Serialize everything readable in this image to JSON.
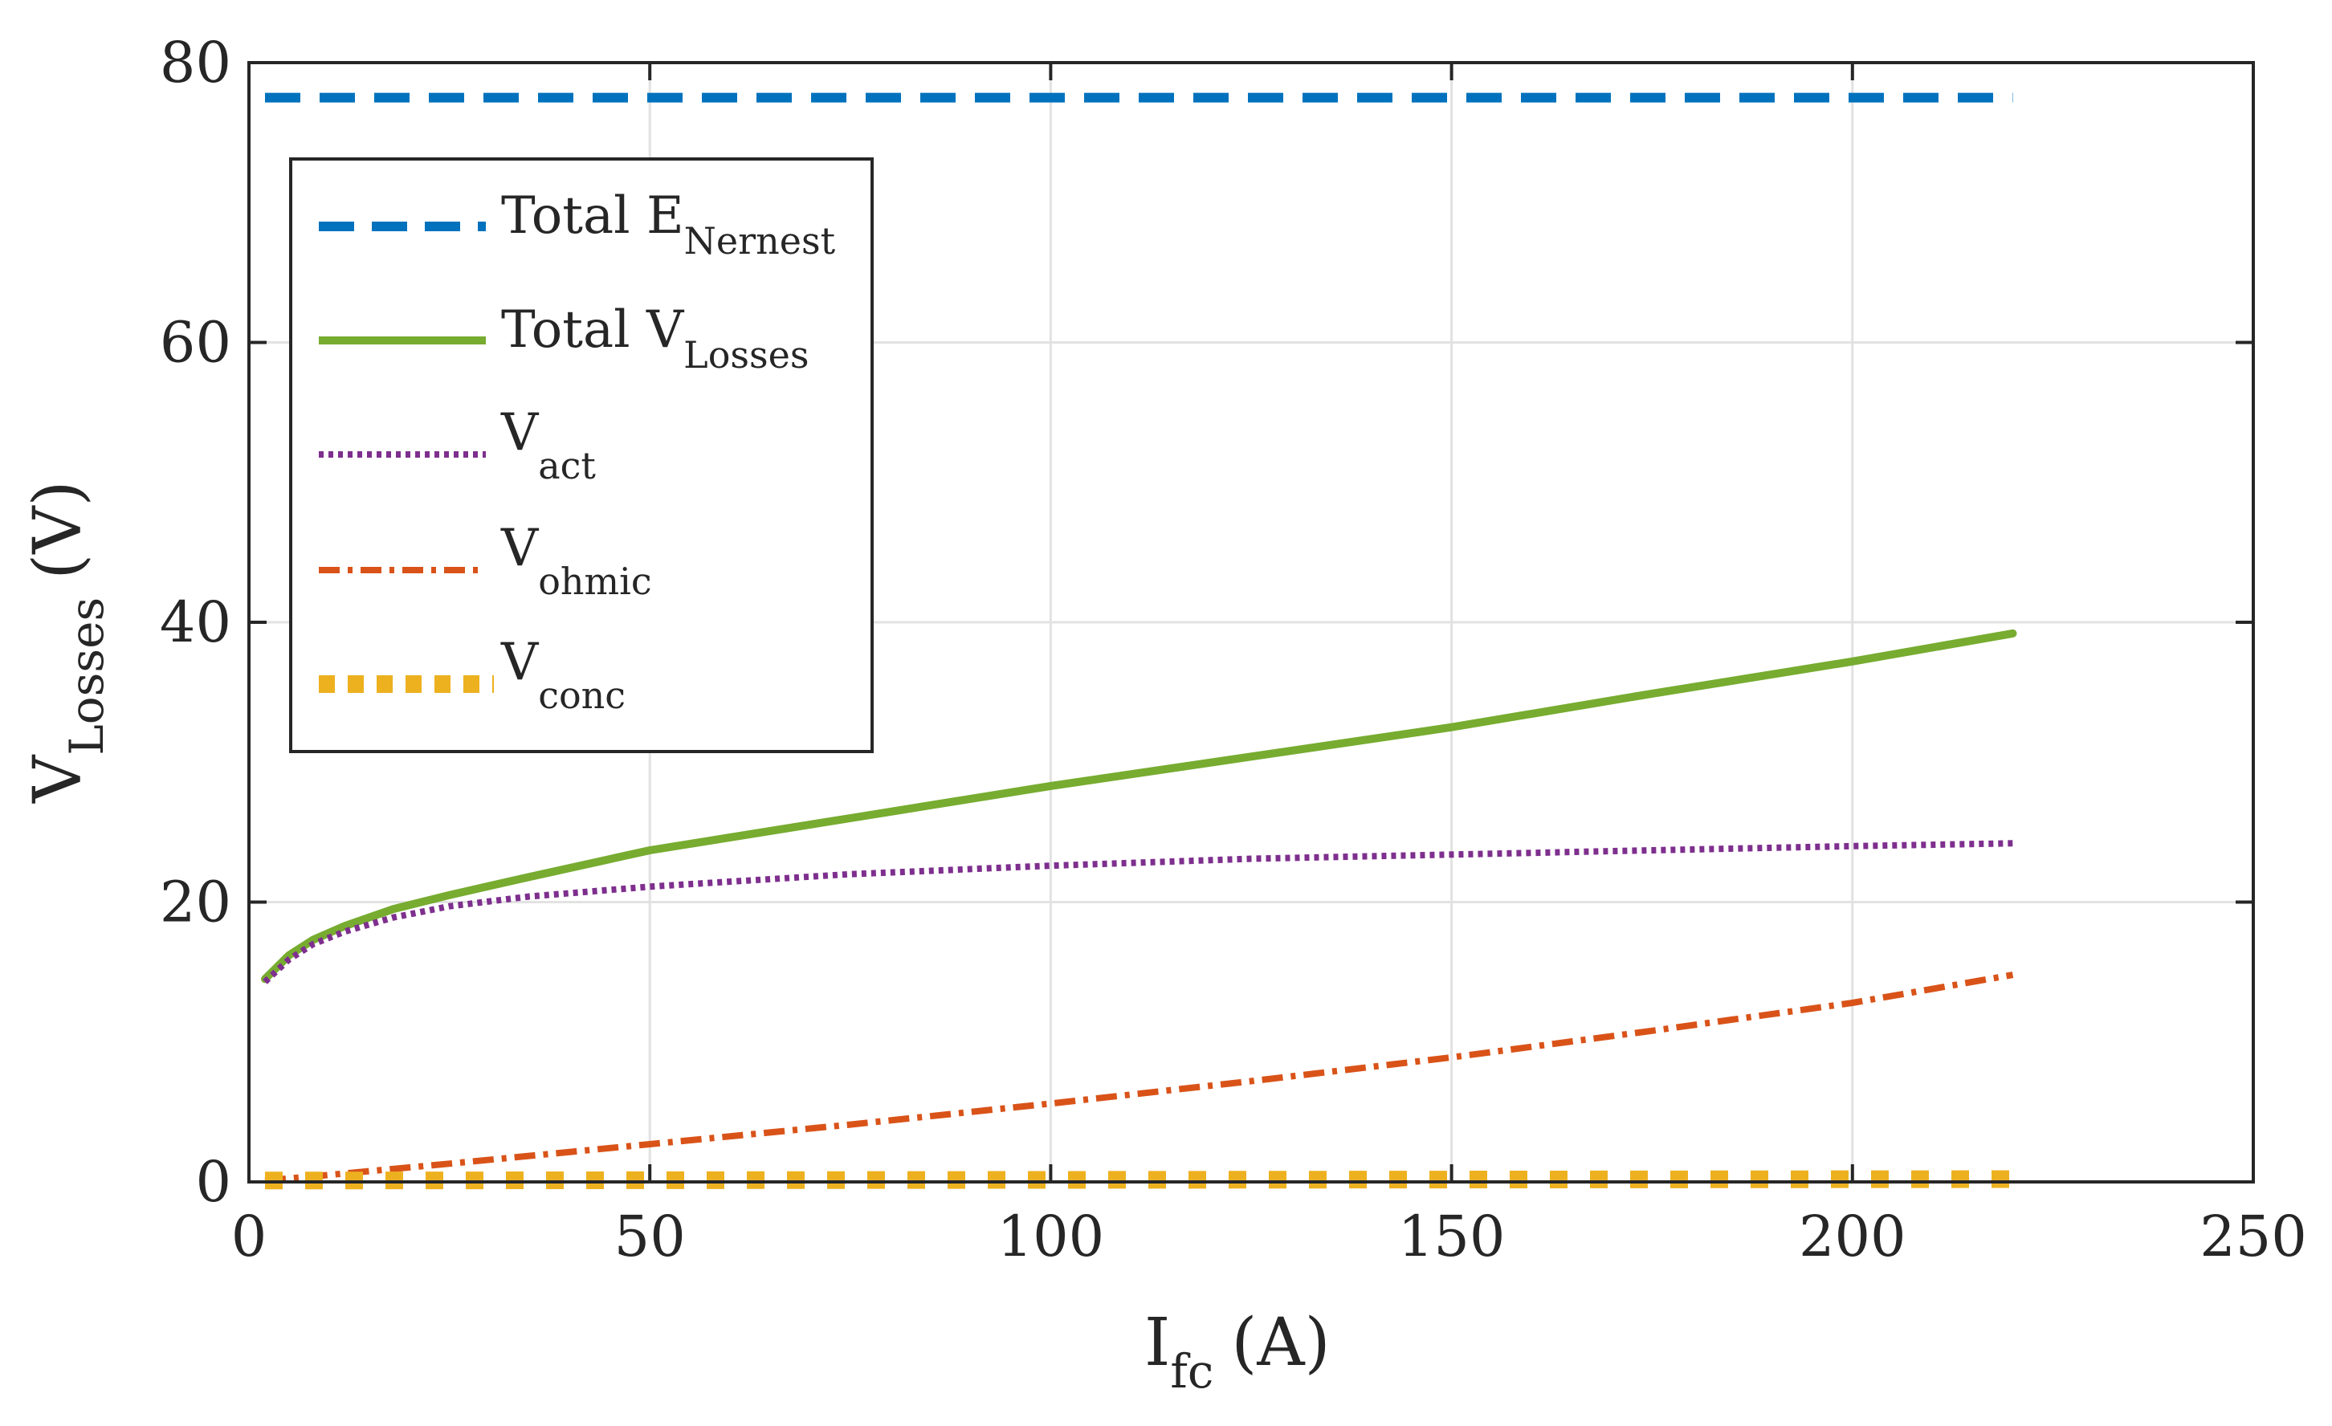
{
  "chart_data": {
    "type": "line",
    "title": "",
    "xlabel": {
      "main": "I",
      "sub": "fc",
      "unit": "(A)"
    },
    "ylabel": {
      "main": "V",
      "sub": "Losses",
      "unit": "(V)"
    },
    "xlim": [
      0,
      250
    ],
    "ylim": [
      0,
      80
    ],
    "xticks": [
      0,
      50,
      100,
      150,
      200,
      250
    ],
    "yticks": [
      0,
      20,
      40,
      60,
      80
    ],
    "grid": true,
    "legend_position": "top-left",
    "series": [
      {
        "name": "Total E_Nernest",
        "label_main": "Total E",
        "label_sub": "Nernest",
        "color": "#0072BD",
        "style": "dashed",
        "x": [
          2,
          220
        ],
        "y": [
          77.5,
          77.5
        ]
      },
      {
        "name": "Total V_Losses",
        "label_main": "Total V",
        "label_sub": "Losses",
        "color": "#77AC30",
        "style": "solid",
        "x": [
          2,
          5,
          8,
          12,
          18,
          25,
          35,
          50,
          75,
          100,
          125,
          150,
          175,
          200,
          220
        ],
        "y": [
          14.5,
          16.2,
          17.3,
          18.3,
          19.5,
          20.5,
          21.8,
          23.7,
          26.0,
          28.3,
          30.4,
          32.5,
          34.9,
          37.2,
          39.2
        ]
      },
      {
        "name": "V_act",
        "label_main": "V",
        "label_sub": "act",
        "color": "#7E2F8E",
        "style": "dotted",
        "x": [
          2,
          5,
          8,
          12,
          18,
          25,
          35,
          50,
          75,
          100,
          125,
          150,
          175,
          200,
          220
        ],
        "y": [
          14.3,
          15.9,
          17.0,
          17.9,
          18.9,
          19.7,
          20.4,
          21.1,
          22.0,
          22.6,
          23.1,
          23.4,
          23.7,
          24.0,
          24.2
        ]
      },
      {
        "name": "V_ohmic",
        "label_main": "V",
        "label_sub": "ohmic",
        "color": "#D95319",
        "style": "dashdot",
        "x": [
          2,
          10,
          25,
          50,
          75,
          100,
          125,
          150,
          175,
          200,
          220
        ],
        "y": [
          0.1,
          0.5,
          1.3,
          2.7,
          4.1,
          5.6,
          7.2,
          8.9,
          10.8,
          12.8,
          14.8
        ]
      },
      {
        "name": "V_conc",
        "label_main": "V",
        "label_sub": "conc",
        "color": "#EDB120",
        "style": "square-dotted",
        "x": [
          2,
          220
        ],
        "y": [
          0.1,
          0.2
        ]
      }
    ]
  }
}
